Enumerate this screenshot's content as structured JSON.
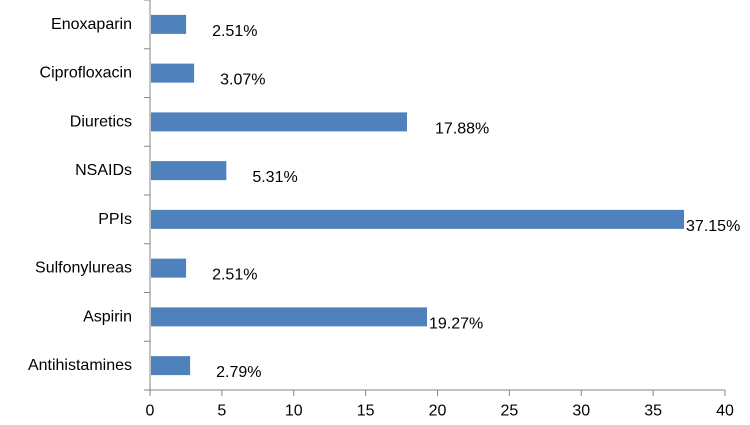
{
  "chart_data": {
    "type": "bar",
    "orientation": "horizontal",
    "title": "",
    "xlabel": "",
    "ylabel": "",
    "categories": [
      "Enoxaparin",
      "Ciprofloxacin",
      "Diuretics",
      "NSAIDs",
      "PPIs",
      "Sulfonylureas",
      "Aspirin",
      "Antihistamines"
    ],
    "values": [
      2.51,
      3.07,
      17.88,
      5.31,
      37.15,
      2.51,
      19.27,
      2.79
    ],
    "data_labels": [
      "2.51%",
      "3.07%",
      "17.88%",
      "5.31%",
      "37.15%",
      "2.51%",
      "19.27%",
      "2.79%"
    ],
    "xlim": [
      0,
      40
    ],
    "xticks": [
      0,
      5,
      10,
      15,
      20,
      25,
      30,
      35,
      40
    ],
    "grid": false,
    "legend": "none",
    "bar_color": "#4f81bd",
    "axis_color": "#868686"
  }
}
